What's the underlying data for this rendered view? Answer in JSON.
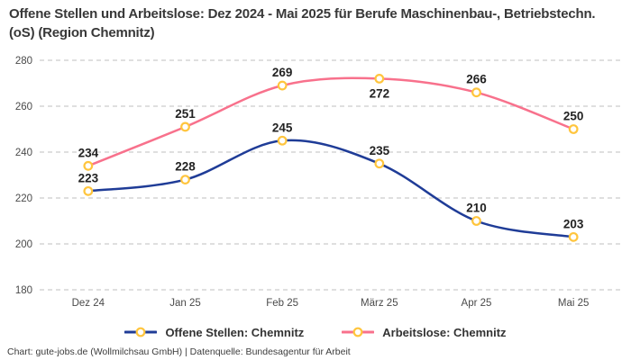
{
  "title": "Offene Stellen und Arbeitslose: Dez 2024 - Mai 2025 für Berufe Maschinenbau-, Betriebstechn.(oS) (Region Chemnitz)",
  "footer": "Chart: gute-jobs.de (Wollmilchsau GmbH) | Datenquelle: Bundesagentur für Arbeit",
  "colors": {
    "marker_ring": "#ffc53d",
    "grid": "#cccccc",
    "axis_text": "#4a4a4a",
    "label_text": "#222222",
    "title_text": "#383838",
    "legend_text": "#333333",
    "background": "#ffffff"
  },
  "chart_data": {
    "type": "line",
    "categories": [
      "Dez 24",
      "Jan 25",
      "Feb 25",
      "März 25",
      "Apr 25",
      "Mai 25"
    ],
    "series": [
      {
        "name": "Offene Stellen: Chemnitz",
        "color": "#1f3c97",
        "values": [
          223,
          228,
          245,
          235,
          210,
          203
        ],
        "label_positions": [
          "above",
          "above",
          "above",
          "above",
          "above",
          "above"
        ]
      },
      {
        "name": "Arbeitslose: Chemnitz",
        "color": "#f8718c",
        "values": [
          234,
          251,
          269,
          272,
          266,
          250
        ],
        "label_positions": [
          "above",
          "above",
          "above",
          "below",
          "above",
          "above"
        ]
      }
    ],
    "ylim": [
      180,
      280
    ],
    "ytick_step": 20,
    "grid": "dashed-horizontal",
    "legend_position": "bottom",
    "marker": "open-circle-yellow"
  }
}
